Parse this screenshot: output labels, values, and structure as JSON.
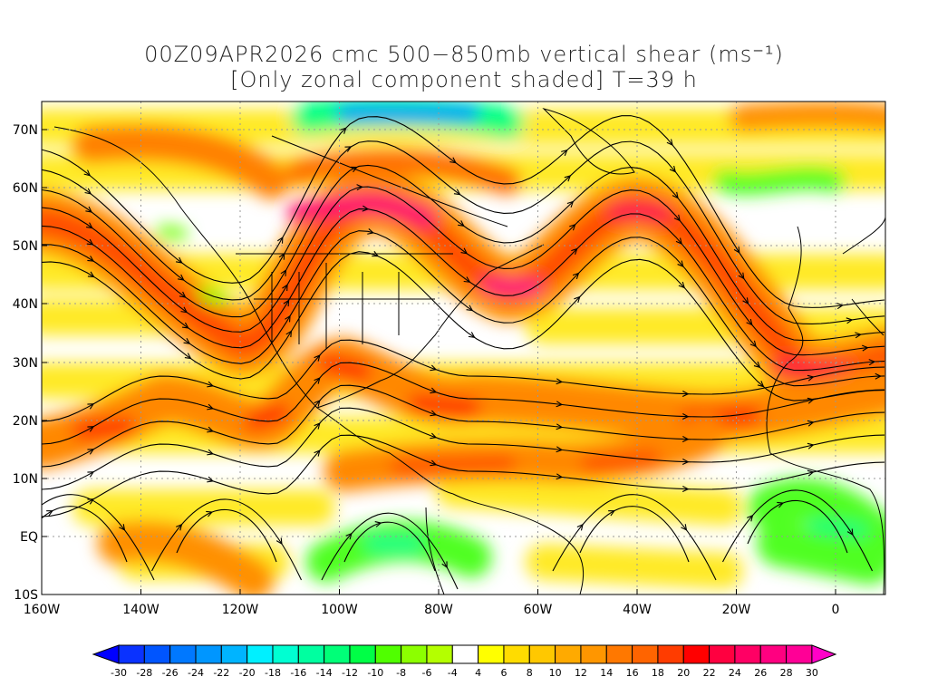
{
  "title": {
    "line1": "00Z09APR2026 cmc 500−850mb vertical shear (ms⁻¹)",
    "line2": "[Only zonal component shaded] T=39 h"
  },
  "axes": {
    "lon_labels": [
      "160W",
      "140W",
      "120W",
      "100W",
      "80W",
      "60W",
      "40W",
      "20W",
      "0"
    ],
    "lat_labels": [
      "70N",
      "60N",
      "50N",
      "40N",
      "30N",
      "20N",
      "10N",
      "EQ",
      "10S"
    ]
  },
  "colorbar": {
    "labels": [
      "-30",
      "-28",
      "-26",
      "-24",
      "-22",
      "-20",
      "-18",
      "-16",
      "-14",
      "-12",
      "-10",
      "-8",
      "-6",
      "-4",
      "4",
      "6",
      "8",
      "10",
      "12",
      "14",
      "16",
      "18",
      "20",
      "22",
      "24",
      "26",
      "28",
      "30"
    ],
    "colors": [
      "#0a32ff",
      "#0055ff",
      "#0078ff",
      "#0096ff",
      "#00b4ff",
      "#00f0ff",
      "#00ffd2",
      "#00ffa0",
      "#00ff78",
      "#00ff46",
      "#50ff00",
      "#8cff00",
      "#b4ff00",
      "#ffffff",
      "#ffff00",
      "#ffdc00",
      "#ffc800",
      "#ffaa00",
      "#ff9600",
      "#ff7800",
      "#ff6400",
      "#ff3c00",
      "#ff0000",
      "#ff0040",
      "#ff0064",
      "#ff0080",
      "#ff0096"
    ],
    "low_arrow_color": "#0000ff",
    "high_arrow_color": "#ff00c8"
  }
}
